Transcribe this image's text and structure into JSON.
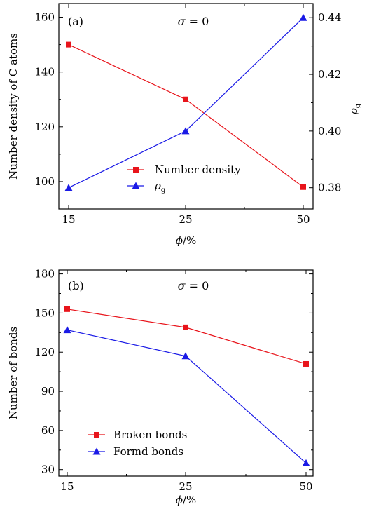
{
  "chart_data": [
    {
      "type": "line",
      "panel_label": "(a)",
      "annotation": "σ = 0",
      "categories": [
        "15",
        "25",
        "50"
      ],
      "xlabel": "ϕ/%",
      "ylabel": "Number density of C atoms",
      "ylabel_right": "ρg",
      "ylim": [
        90,
        165
      ],
      "y_ticks": [
        "100",
        "120",
        "140",
        "160"
      ],
      "ylim_right": [
        0.3725,
        0.445
      ],
      "y_ticks_right": [
        "0.38",
        "0.40",
        "0.42",
        "0.44"
      ],
      "grid": false,
      "legend_position": "center-right",
      "series": [
        {
          "name": "Number density",
          "axis": "left",
          "color": "#e8141b",
          "marker": "square",
          "values": [
            150,
            130,
            98
          ]
        },
        {
          "name": "ρg",
          "axis": "right",
          "color": "#1a1ae6",
          "marker": "triangle",
          "values": [
            0.38,
            0.4,
            0.44
          ]
        }
      ]
    },
    {
      "type": "line",
      "panel_label": "(b)",
      "annotation": "σ = 0",
      "categories": [
        "15",
        "25",
        "50"
      ],
      "xlabel": "ϕ/%",
      "ylabel": "Number of bonds",
      "ylim": [
        25,
        183
      ],
      "y_ticks": [
        "30",
        "60",
        "90",
        "120",
        "150",
        "180"
      ],
      "grid": false,
      "legend_position": "bottom-left",
      "series": [
        {
          "name": "Broken bonds",
          "color": "#e8141b",
          "marker": "square",
          "values": [
            153,
            139,
            111
          ]
        },
        {
          "name": "Formd bonds",
          "color": "#1a1ae6",
          "marker": "triangle",
          "values": [
            137,
            117,
            35
          ]
        }
      ]
    }
  ]
}
